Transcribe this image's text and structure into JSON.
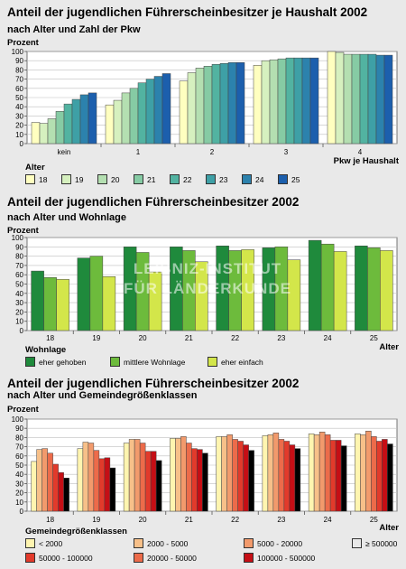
{
  "colors": {
    "c1": [
      "#ffffc0",
      "#d6f0bf",
      "#b4dfb1",
      "#86cba4",
      "#52b3a1",
      "#3ea0a6",
      "#2c82ad",
      "#1c5fad"
    ],
    "c2": [
      "#1f8a3c",
      "#6dbb3c",
      "#d3e64a"
    ],
    "c3": [
      "#fff5b0",
      "#f7c089",
      "#f29a6c",
      "#ec6b4a",
      "#e23a2b",
      "#c50e15"
    ]
  },
  "watermark": {
    "line1": "LEIBNIZ-INSTITUT",
    "line2": "FÜR LÄNDERKUNDE"
  },
  "chart_data": [
    {
      "type": "bar",
      "title": "Anteil der jugendlichen Führerscheinbesitzer je Haushalt 2002",
      "subtitle": "nach Alter und Zahl der Pkw",
      "ylabel": "Prozent",
      "xlabel": "Pkw je Haushalt",
      "ylim": [
        0,
        100
      ],
      "yticks": [
        0,
        10,
        20,
        30,
        40,
        50,
        60,
        70,
        80,
        90,
        100
      ],
      "categories": [
        "kein",
        "1",
        "2",
        "3",
        "4"
      ],
      "legend_title": "Alter",
      "series": [
        {
          "name": "18",
          "values": [
            23,
            42,
            68,
            85,
            100
          ]
        },
        {
          "name": "19",
          "values": [
            22,
            47,
            77,
            90,
            99
          ]
        },
        {
          "name": "20",
          "values": [
            27,
            55,
            82,
            91,
            97
          ]
        },
        {
          "name": "21",
          "values": [
            35,
            60,
            84,
            92,
            97
          ]
        },
        {
          "name": "22",
          "values": [
            43,
            66,
            86,
            93,
            97
          ]
        },
        {
          "name": "23",
          "values": [
            48,
            70,
            87,
            93,
            97
          ]
        },
        {
          "name": "24",
          "values": [
            53,
            73,
            88,
            93,
            96
          ]
        },
        {
          "name": "25",
          "values": [
            55,
            76,
            88,
            93,
            96
          ]
        }
      ]
    },
    {
      "type": "bar",
      "title": "Anteil der jugendlichen Führerscheinbesitzer 2002",
      "subtitle": "nach Alter und Wohnlage",
      "ylabel": "Prozent",
      "xlabel": "Alter",
      "ylim": [
        0,
        100
      ],
      "yticks": [
        0,
        10,
        20,
        30,
        40,
        50,
        60,
        70,
        80,
        90,
        100
      ],
      "categories": [
        "18",
        "19",
        "20",
        "21",
        "22",
        "23",
        "24",
        "25"
      ],
      "legend_title": "Wohnlage",
      "series": [
        {
          "name": "eher gehoben",
          "values": [
            64,
            78,
            90,
            90,
            91,
            89,
            97,
            91
          ]
        },
        {
          "name": "mittlere Wohnlage",
          "values": [
            57,
            80,
            84,
            86,
            86,
            90,
            93,
            89
          ]
        },
        {
          "name": "eher einfach",
          "values": [
            55,
            58,
            63,
            74,
            87,
            76,
            85,
            86
          ]
        }
      ]
    },
    {
      "type": "bar",
      "title": "Anteil der jugendlichen Führerscheinbesitzer 2002",
      "subtitle": "nach Alter und Gemeindegrößenklassen",
      "ylabel": "Prozent",
      "xlabel": "Alter",
      "ylim": [
        0,
        100
      ],
      "yticks": [
        0,
        10,
        20,
        30,
        40,
        50,
        60,
        70,
        80,
        90,
        100
      ],
      "categories": [
        "18",
        "19",
        "20",
        "21",
        "22",
        "23",
        "24",
        "25"
      ],
      "legend_title": "Gemeindegrößenklassen",
      "series": [
        {
          "name": "< 2000",
          "values": [
            54,
            68,
            74,
            79,
            81,
            82,
            84,
            84
          ]
        },
        {
          "name": "2000 - 5000",
          "values": [
            67,
            75,
            78,
            79,
            81,
            83,
            83,
            83
          ]
        },
        {
          "name": "5000 - 20000",
          "values": [
            68,
            74,
            78,
            81,
            83,
            85,
            86,
            87
          ]
        },
        {
          "name": "20000 - 50000",
          "values": [
            63,
            66,
            74,
            74,
            78,
            78,
            83,
            81
          ]
        },
        {
          "name": "50000 - 100000",
          "values": [
            51,
            57,
            65,
            68,
            76,
            76,
            77,
            76
          ]
        },
        {
          "name": "100000 - 500000",
          "values": [
            42,
            58,
            65,
            67,
            72,
            72,
            77,
            78
          ]
        },
        {
          "name": "≥ 500000",
          "values": [
            36,
            47,
            55,
            63,
            66,
            68,
            71,
            73
          ]
        }
      ]
    }
  ]
}
